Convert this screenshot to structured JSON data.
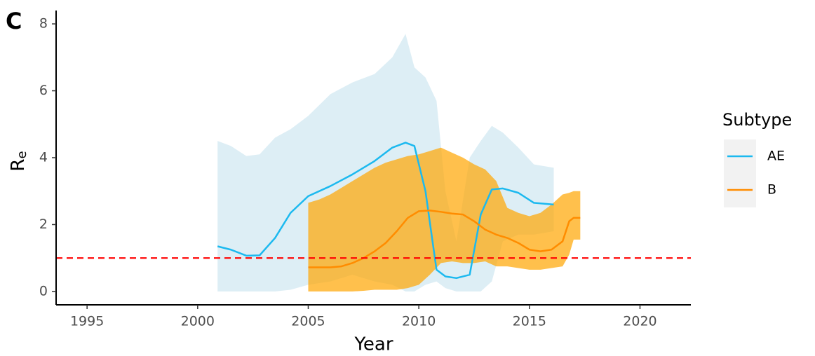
{
  "chart_data": {
    "type": "line",
    "panel_label": "C",
    "xlabel": "Year",
    "ylabel": "R",
    "ylabel_subscript": "e",
    "legend_title": "Subtype",
    "legend": "right",
    "xlim": [
      1993.6,
      2022.3
    ],
    "ylim": [
      -0.4,
      8.4
    ],
    "xticks": [
      1995,
      2000,
      2005,
      2010,
      2015,
      2020
    ],
    "yticks": [
      0,
      2,
      4,
      6,
      8
    ],
    "hline": {
      "value": 1,
      "color": "#FF0000"
    },
    "series": [
      {
        "name": "AE",
        "color": "#1CB9EF",
        "band_color": "#DDEEF5",
        "x": [
          2000.9,
          2001.5,
          2002.2,
          2002.8,
          2003.5,
          2004.2,
          2005,
          2006,
          2007,
          2008,
          2008.8,
          2009.4,
          2009.8,
          2010.3,
          2010.8,
          2011.2,
          2011.7,
          2012.3,
          2012.8,
          2013.3,
          2013.8,
          2014.5,
          2015.2,
          2016.1
        ],
        "values": [
          1.35,
          1.25,
          1.07,
          1.08,
          1.6,
          2.35,
          2.85,
          3.15,
          3.5,
          3.9,
          4.3,
          4.45,
          4.35,
          3.0,
          0.65,
          0.45,
          0.4,
          0.5,
          2.3,
          3.05,
          3.08,
          2.95,
          2.65,
          2.6
        ],
        "upper": [
          4.5,
          4.35,
          4.05,
          4.1,
          4.6,
          4.85,
          5.25,
          5.9,
          6.25,
          6.5,
          7.0,
          7.7,
          6.7,
          6.4,
          5.7,
          3.0,
          1.5,
          4.0,
          4.5,
          4.95,
          4.75,
          4.3,
          3.8,
          3.7
        ],
        "lower": [
          0,
          0,
          0,
          0,
          0,
          0.05,
          0.2,
          0.3,
          0.5,
          0.3,
          0.2,
          0,
          0,
          0.2,
          0.3,
          0.1,
          0,
          0,
          0,
          0.3,
          1.5,
          1.7,
          1.7,
          1.8
        ]
      },
      {
        "name": "B",
        "color": "#FF8C00",
        "band_color": "#FFA500",
        "x": [
          2005,
          2005.5,
          2006,
          2006.5,
          2007,
          2007.5,
          2008,
          2008.5,
          2009,
          2009.5,
          2010,
          2010.5,
          2011,
          2011.5,
          2012,
          2012.5,
          2013,
          2013.5,
          2014,
          2014.5,
          2015,
          2015.5,
          2016,
          2016.5,
          2016.8,
          2017,
          2017.3
        ],
        "values": [
          0.72,
          0.72,
          0.72,
          0.75,
          0.85,
          1.0,
          1.2,
          1.45,
          1.8,
          2.2,
          2.4,
          2.42,
          2.38,
          2.33,
          2.3,
          2.1,
          1.85,
          1.7,
          1.6,
          1.45,
          1.25,
          1.2,
          1.25,
          1.5,
          2.1,
          2.2,
          2.2
        ],
        "upper": [
          2.65,
          2.75,
          2.9,
          3.1,
          3.3,
          3.5,
          3.7,
          3.85,
          3.95,
          4.05,
          4.1,
          4.2,
          4.3,
          4.15,
          4.0,
          3.8,
          3.65,
          3.3,
          2.5,
          2.35,
          2.25,
          2.35,
          2.6,
          2.9,
          2.95,
          3.0,
          3.0
        ],
        "lower": [
          0,
          0,
          0,
          0,
          0,
          0.02,
          0.05,
          0.05,
          0.05,
          0.1,
          0.2,
          0.5,
          0.85,
          0.9,
          0.85,
          0.85,
          0.9,
          0.75,
          0.75,
          0.7,
          0.65,
          0.65,
          0.7,
          0.75,
          1.1,
          1.55,
          1.55
        ]
      }
    ]
  }
}
